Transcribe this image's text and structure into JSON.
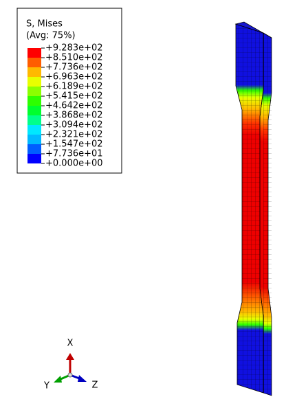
{
  "legend": {
    "title": [
      "S, Mises",
      "(Avg: 75%)"
    ],
    "labels": [
      "+9.283e+02",
      "+8.510e+02",
      "+7.736e+02",
      "+6.963e+02",
      "+6.189e+02",
      "+5.415e+02",
      "+4.642e+02",
      "+3.868e+02",
      "+3.094e+02",
      "+2.321e+02",
      "+1.547e+02",
      "+7.736e+01",
      "+0.000e+00"
    ],
    "colors": [
      "#ff0000",
      "#ff5d00",
      "#ffb900",
      "#e8ff00",
      "#8bff00",
      "#2eff00",
      "#00ff2e",
      "#00ff8b",
      "#00e8ff",
      "#00b9ff",
      "#005dff",
      "#0000ff"
    ]
  },
  "triad": {
    "x": "X",
    "y": "Y",
    "z": "Z"
  }
}
